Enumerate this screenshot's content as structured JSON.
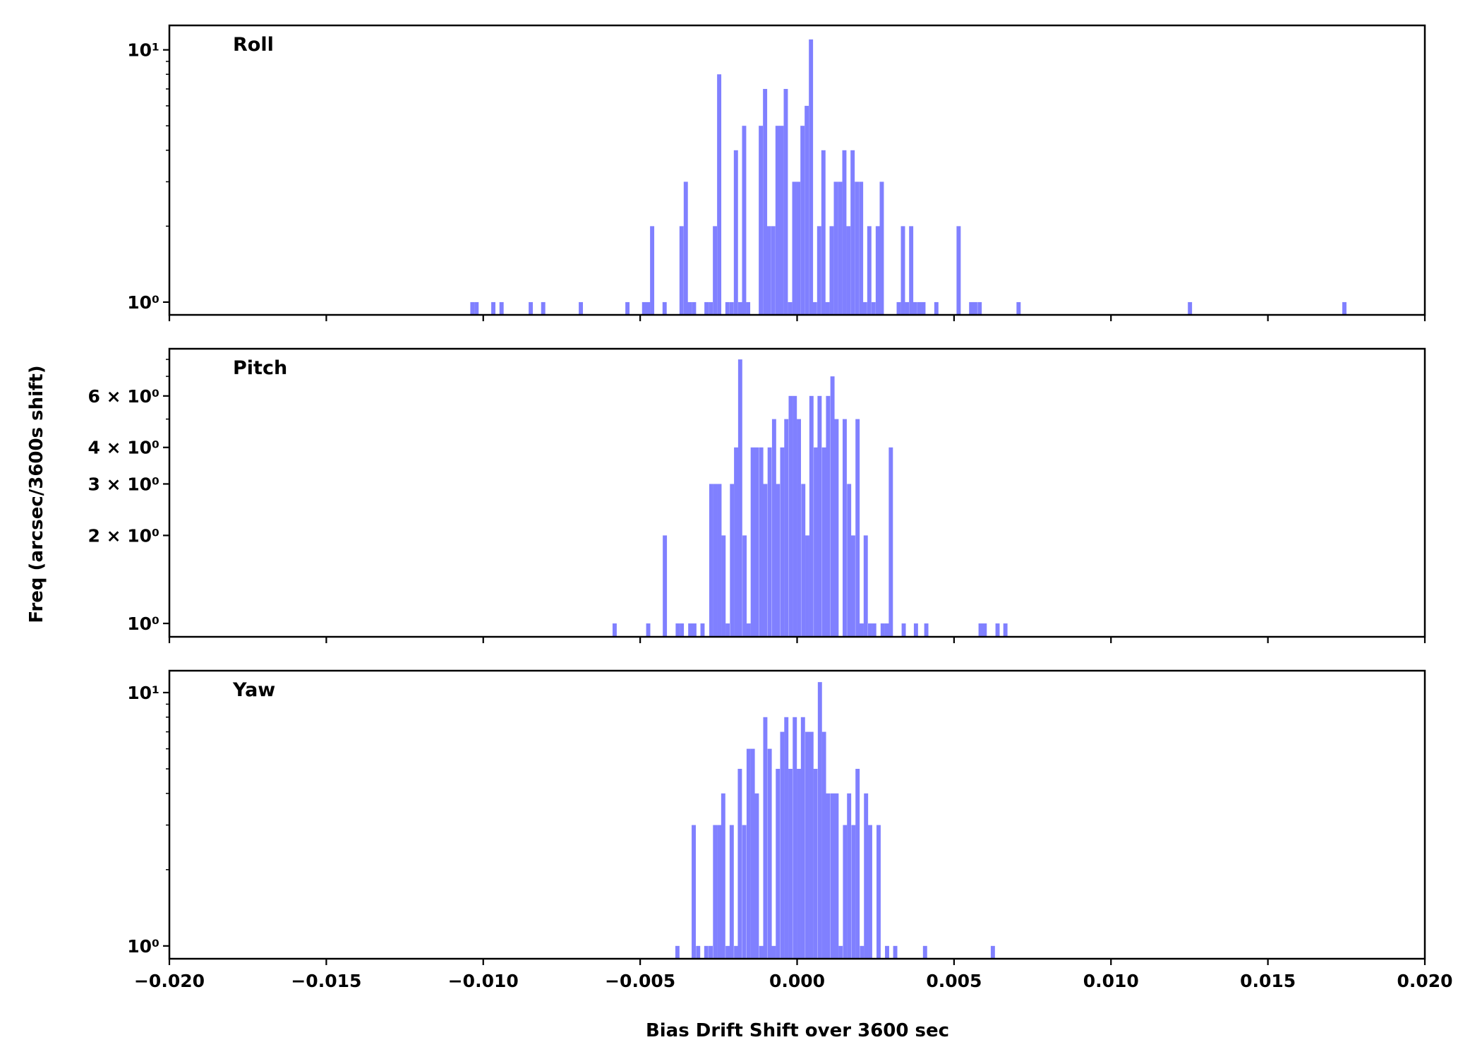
{
  "chart_data": {
    "type": "bar",
    "subtype": "histogram",
    "bar_color": "#8080ff",
    "bin_width": 0.000133,
    "xlim": [
      -0.02,
      0.02
    ],
    "xticks": [
      {
        "value": -0.02,
        "label": "−0.020"
      },
      {
        "value": -0.015,
        "label": "−0.015"
      },
      {
        "value": -0.01,
        "label": "−0.010"
      },
      {
        "value": -0.005,
        "label": "−0.005"
      },
      {
        "value": 0.0,
        "label": "0.000"
      },
      {
        "value": 0.005,
        "label": "0.005"
      },
      {
        "value": 0.01,
        "label": "0.010"
      },
      {
        "value": 0.015,
        "label": "0.015"
      },
      {
        "value": 0.02,
        "label": "0.020"
      }
    ],
    "xlabel": "Bias Drift Shift over 3600 sec",
    "ylabel": "Freq (arcsec/3600s shift)",
    "yscale": "log",
    "panels": [
      {
        "title": "Roll",
        "ylim": [
          0.89,
          12.5
        ],
        "yticks": [
          {
            "value": 1,
            "label": "10⁰"
          },
          {
            "value": 10,
            "label": "10¹"
          }
        ],
        "minor_ticks": [
          2,
          3,
          4,
          5,
          6,
          7,
          8,
          9
        ],
        "bins": [
          [
            -0.010412,
            1
          ],
          [
            -0.010279,
            1
          ],
          [
            -0.009745,
            1
          ],
          [
            -0.009483,
            1
          ],
          [
            -0.008553,
            1
          ],
          [
            -0.008156,
            1
          ],
          [
            -0.006957,
            1
          ],
          [
            -0.005472,
            1
          ],
          [
            -0.00494,
            1
          ],
          [
            -0.004813,
            1
          ],
          [
            -0.004685,
            2
          ],
          [
            -0.004288,
            1
          ],
          [
            -0.003748,
            2
          ],
          [
            -0.003613,
            3
          ],
          [
            -0.003486,
            1
          ],
          [
            -0.003351,
            1
          ],
          [
            -0.002954,
            1
          ],
          [
            -0.002819,
            1
          ],
          [
            -0.002684,
            2
          ],
          [
            -0.002549,
            8
          ],
          [
            -0.002286,
            1
          ],
          [
            -0.002151,
            1
          ],
          [
            -0.002016,
            4
          ],
          [
            -0.001882,
            1
          ],
          [
            -0.001754,
            5
          ],
          [
            -0.001627,
            1
          ],
          [
            -0.001222,
            5
          ],
          [
            -0.001087,
            7
          ],
          [
            -0.00096,
            2
          ],
          [
            -0.000825,
            2
          ],
          [
            -0.00069,
            5
          ],
          [
            -0.000562,
            5
          ],
          [
            -0.000427,
            7
          ],
          [
            -0.000292,
            1
          ],
          [
            -0.000157,
            3
          ],
          [
            -3e-05,
            3
          ],
          [
            0.000105,
            5
          ],
          [
            0.00024,
            6
          ],
          [
            0.000375,
            11
          ],
          [
            0.000502,
            1
          ],
          [
            0.000637,
            2
          ],
          [
            0.000772,
            4
          ],
          [
            0.0009,
            1
          ],
          [
            0.001034,
            2
          ],
          [
            0.001169,
            3
          ],
          [
            0.001304,
            3
          ],
          [
            0.001439,
            4
          ],
          [
            0.001567,
            2
          ],
          [
            0.001702,
            4
          ],
          [
            0.001837,
            3
          ],
          [
            0.001972,
            3
          ],
          [
            0.002099,
            1
          ],
          [
            0.002234,
            2
          ],
          [
            0.002369,
            1
          ],
          [
            0.002504,
            2
          ],
          [
            0.002631,
            3
          ],
          [
            0.003171,
            1
          ],
          [
            0.003306,
            2
          ],
          [
            0.003433,
            1
          ],
          [
            0.003568,
            2
          ],
          [
            0.003696,
            1
          ],
          [
            0.003831,
            1
          ],
          [
            0.003958,
            1
          ],
          [
            0.00437,
            1
          ],
          [
            0.00508,
            2
          ],
          [
            0.00548,
            1
          ],
          [
            0.00561,
            1
          ],
          [
            0.00575,
            1
          ],
          [
            0.00699,
            1
          ],
          [
            0.01245,
            1
          ],
          [
            0.01737,
            1
          ]
        ]
      },
      {
        "title": "Pitch",
        "ylim": [
          0.9,
          8.7
        ],
        "yticks": [
          {
            "value": 1,
            "label": "10⁰"
          },
          {
            "value": 2,
            "label": "2 × 10⁰"
          },
          {
            "value": 3,
            "label": "3 × 10⁰"
          },
          {
            "value": 4,
            "label": "4 × 10⁰"
          },
          {
            "value": 6,
            "label": "6 × 10⁰"
          }
        ],
        "minor_ticks": [
          5,
          7,
          8
        ],
        "bins": [
          [
            -0.00588,
            1
          ],
          [
            -0.00481,
            1
          ],
          [
            -0.00428,
            2
          ],
          [
            -0.00387,
            1
          ],
          [
            -0.00374,
            1
          ],
          [
            -0.00347,
            1
          ],
          [
            -0.00334,
            1
          ],
          [
            -0.00308,
            1
          ],
          [
            -0.0028,
            3
          ],
          [
            -0.00267,
            3
          ],
          [
            -0.00254,
            3
          ],
          [
            -0.00241,
            2
          ],
          [
            -0.00228,
            1
          ],
          [
            -0.00214,
            3
          ],
          [
            -0.00201,
            4
          ],
          [
            -0.00188,
            8
          ],
          [
            -0.00174,
            2
          ],
          [
            -0.00161,
            1
          ],
          [
            -0.00148,
            4
          ],
          [
            -0.00135,
            4
          ],
          [
            -0.00121,
            4
          ],
          [
            -0.00108,
            3
          ],
          [
            -0.00094,
            4
          ],
          [
            -0.0008,
            5
          ],
          [
            -0.00068,
            3
          ],
          [
            -0.00054,
            4
          ],
          [
            -0.00041,
            5
          ],
          [
            -0.00027,
            6
          ],
          [
            -0.00014,
            6
          ],
          [
            -1e-05,
            5
          ],
          [
            0.00013,
            3
          ],
          [
            0.00026,
            2
          ],
          [
            0.00039,
            6
          ],
          [
            0.00053,
            4
          ],
          [
            0.00065,
            6
          ],
          [
            0.00079,
            4
          ],
          [
            0.00092,
            6
          ],
          [
            0.00106,
            7
          ],
          [
            0.00119,
            5
          ],
          [
            0.00145,
            5
          ],
          [
            0.00159,
            3
          ],
          [
            0.00172,
            2
          ],
          [
            0.00186,
            5
          ],
          [
            0.00199,
            1
          ],
          [
            0.00212,
            2
          ],
          [
            0.00226,
            1
          ],
          [
            0.00239,
            1
          ],
          [
            0.00266,
            1
          ],
          [
            0.00279,
            1
          ],
          [
            0.00292,
            4
          ],
          [
            0.00333,
            1
          ],
          [
            0.00372,
            1
          ],
          [
            0.00405,
            1
          ],
          [
            0.00578,
            1
          ],
          [
            0.00591,
            1
          ],
          [
            0.00632,
            1
          ],
          [
            0.00657,
            1
          ]
        ]
      },
      {
        "title": "Yaw",
        "ylim": [
          0.89,
          12.2
        ],
        "yticks": [
          {
            "value": 1,
            "label": "10⁰"
          },
          {
            "value": 10,
            "label": "10¹"
          }
        ],
        "minor_ticks": [
          2,
          3,
          4,
          5,
          6,
          7,
          8,
          9
        ],
        "bins": [
          [
            -0.00388,
            1
          ],
          [
            -0.00336,
            3
          ],
          [
            -0.00322,
            1
          ],
          [
            -0.00296,
            1
          ],
          [
            -0.00282,
            1
          ],
          [
            -0.00268,
            3
          ],
          [
            -0.00255,
            3
          ],
          [
            -0.00242,
            4
          ],
          [
            -0.00228,
            1
          ],
          [
            -0.00215,
            3
          ],
          [
            -0.00201,
            1
          ],
          [
            -0.00189,
            5
          ],
          [
            -0.00175,
            3
          ],
          [
            -0.00161,
            6
          ],
          [
            -0.00148,
            6
          ],
          [
            -0.00135,
            4
          ],
          [
            -0.00121,
            1
          ],
          [
            -0.00108,
            8
          ],
          [
            -0.00094,
            6
          ],
          [
            -0.00081,
            1
          ],
          [
            -0.00068,
            5
          ],
          [
            -0.00054,
            7
          ],
          [
            -0.00041,
            8
          ],
          [
            -0.00028,
            5
          ],
          [
            -0.00014,
            8
          ],
          [
            -1e-05,
            5
          ],
          [
            0.00012,
            8
          ],
          [
            0.00026,
            7
          ],
          [
            0.00039,
            7
          ],
          [
            0.00052,
            5
          ],
          [
            0.00066,
            11
          ],
          [
            0.00079,
            7
          ],
          [
            0.00092,
            4
          ],
          [
            0.00106,
            4
          ],
          [
            0.00119,
            4
          ],
          [
            0.00132,
            1
          ],
          [
            0.00146,
            3
          ],
          [
            0.00159,
            4
          ],
          [
            0.00173,
            3
          ],
          [
            0.00186,
            5
          ],
          [
            0.002,
            1
          ],
          [
            0.00213,
            4
          ],
          [
            0.00226,
            3
          ],
          [
            0.00253,
            3
          ],
          [
            0.0028,
            1
          ],
          [
            0.00306,
            1
          ],
          [
            0.00401,
            1
          ],
          [
            0.00617,
            1
          ]
        ]
      }
    ]
  }
}
